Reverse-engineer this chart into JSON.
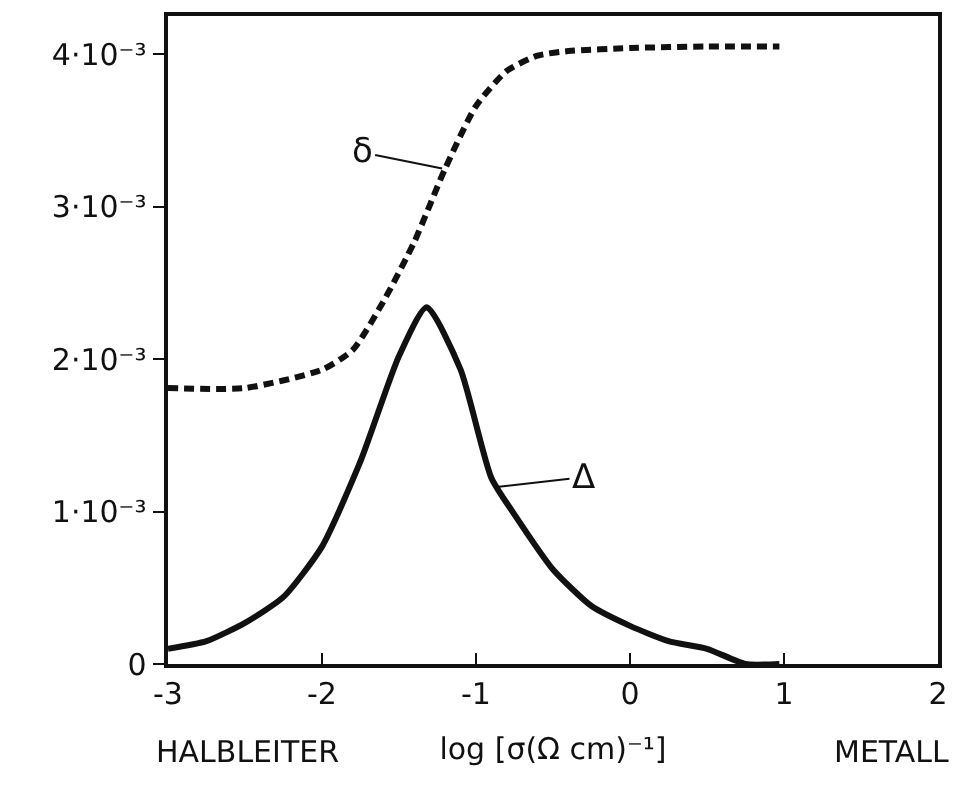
{
  "chart_data": {
    "type": "line",
    "xlabel": "log [σ(Ω cm)⁻¹]",
    "xlim": [
      -3,
      2
    ],
    "xticks": [
      -3,
      -2,
      -1,
      0,
      1,
      2
    ],
    "ylim": [
      0,
      0.00425
    ],
    "yticks": [
      0,
      {
        "value": 0.001,
        "label": "1·10⁻³"
      },
      {
        "value": 0.002,
        "label": "2·10⁻³"
      },
      {
        "value": 0.003,
        "label": "3·10⁻³"
      },
      {
        "value": 0.004,
        "label": "4·10⁻³"
      }
    ],
    "grid": false,
    "marker": "none",
    "series": [
      {
        "color": "#111111",
        "line_style": "dashed",
        "x": [
          -3,
          -2.5,
          -2,
          -1.8,
          -1.6,
          -1.4,
          -1.2,
          -1.0,
          -0.8,
          -0.6,
          -0.4,
          0,
          0.5,
          0.97
        ],
        "values": [
          0.00181,
          0.00181,
          0.00193,
          0.00206,
          0.00238,
          0.00277,
          0.00325,
          0.00366,
          0.00389,
          0.00399,
          0.00402,
          0.00404,
          0.00405,
          0.00405
        ]
      },
      {
        "color": "#111111",
        "line_style": "solid",
        "x": [
          -3,
          -2.75,
          -2.5,
          -2.25,
          -2,
          -1.75,
          -1.5,
          -1.32,
          -1.1,
          -0.9,
          -0.75,
          -0.5,
          -0.25,
          0,
          0.25,
          0.5,
          0.75,
          0.97
        ],
        "values": [
          0.0001,
          0.00015,
          0.00027,
          0.00044,
          0.00077,
          0.00133,
          0.00202,
          0.00234,
          0.00193,
          0.00122,
          0.00098,
          0.00062,
          0.00038,
          0.00025,
          0.00015,
          0.0001,
          0,
          0
        ]
      }
    ],
    "annotations": [
      {
        "text": "δ",
        "x": -1.22,
        "y": 0.00325
      },
      {
        "text": "Δ",
        "x": -0.88,
        "y": 0.00116
      },
      "HALBLEITER",
      "METALL"
    ]
  }
}
